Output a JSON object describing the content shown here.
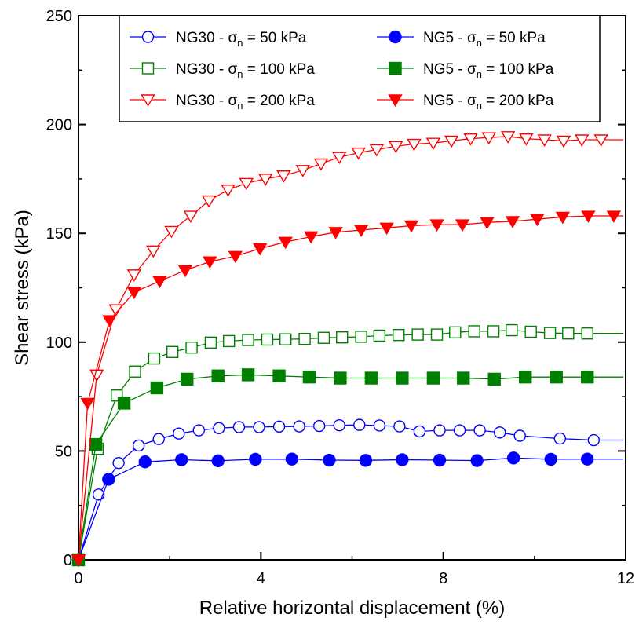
{
  "chart_data": {
    "type": "line",
    "title": "",
    "xlabel": "Relative horizontal displacement (%)",
    "ylabel": "Shear stress (kPa)",
    "xlim": [
      0,
      12
    ],
    "ylim": [
      0,
      250
    ],
    "x_ticks": [
      "0",
      "4",
      "8",
      "12"
    ],
    "y_ticks": [
      "0",
      "50",
      "100",
      "150",
      "200",
      "250"
    ],
    "grid": false,
    "legend_position": "top-center",
    "legend": {
      "left": [
        {
          "prefix": "NG30 - ",
          "sigma": "σ",
          "sub": "n",
          "suffix": " =  50 kPa"
        },
        {
          "prefix": "NG30 - ",
          "sigma": "σ",
          "sub": "n",
          "suffix": " =  100 kPa"
        },
        {
          "prefix": "NG30 - ",
          "sigma": "σ",
          "sub": "n",
          "suffix": " =  200 kPa"
        }
      ],
      "right": [
        {
          "prefix": "NG5 - ",
          "sigma": "σ",
          "sub": "n",
          "suffix": " =  50 kPa"
        },
        {
          "prefix": "NG5 - ",
          "sigma": "σ",
          "sub": "n",
          "suffix": " =  100 kPa"
        },
        {
          "prefix": "NG5 - ",
          "sigma": "σ",
          "sub": "n",
          "suffix": " =  200 kPa"
        }
      ]
    },
    "series": [
      {
        "name": "NG30 - σn = 50 kPa",
        "color": "#0000FF",
        "marker": "circle-open",
        "x": [
          0,
          0.44,
          0.88,
          1.32,
          1.76,
          2.2,
          2.64,
          3.08,
          3.52,
          3.96,
          4.4,
          4.84,
          5.28,
          5.72,
          6.16,
          6.6,
          7.04,
          7.48,
          7.92,
          8.36,
          8.8,
          9.24,
          9.68,
          10.56,
          11.3
        ],
        "y": [
          0,
          30,
          44.5,
          52.5,
          55.5,
          58,
          59.5,
          60.5,
          61,
          61,
          61.2,
          61.3,
          61.5,
          61.8,
          62,
          61.7,
          61.3,
          59,
          59.5,
          59.5,
          59.5,
          58.5,
          57,
          55.7,
          55
        ]
      },
      {
        "name": "NG5 - σn = 50 kPa",
        "color": "#0000FF",
        "marker": "circle-filled",
        "x": [
          0,
          0.66,
          1.46,
          2.26,
          3.06,
          3.88,
          4.68,
          5.5,
          6.3,
          7.1,
          7.92,
          8.74,
          9.54,
          10.36,
          11.16
        ],
        "y": [
          0,
          37,
          45,
          46,
          45.5,
          46.2,
          46.3,
          45.8,
          45.7,
          46,
          45.8,
          45.6,
          46.8,
          46.2,
          46.3
        ]
      },
      {
        "name": "NG30 - σn = 100 kPa",
        "color": "#008000",
        "marker": "square-open",
        "x": [
          0,
          0.42,
          0.84,
          1.24,
          1.66,
          2.06,
          2.48,
          2.9,
          3.3,
          3.72,
          4.14,
          4.54,
          4.96,
          5.38,
          5.78,
          6.2,
          6.6,
          7.02,
          7.44,
          7.86,
          8.26,
          8.68,
          9.1,
          9.5,
          9.92,
          10.34,
          10.74,
          11.16
        ],
        "y": [
          0,
          51,
          75.5,
          86.5,
          92.5,
          95.5,
          97.5,
          99.8,
          100.5,
          101,
          101.2,
          101.3,
          101.5,
          102,
          102.2,
          102.5,
          103,
          103.3,
          103.5,
          103.5,
          104.5,
          105,
          105,
          105.5,
          104.8,
          104.2,
          104,
          104
        ]
      },
      {
        "name": "NG5 - σn = 100 kPa",
        "color": "#008000",
        "marker": "square-filled",
        "x": [
          0,
          0.38,
          1.0,
          1.72,
          2.38,
          3.06,
          3.72,
          4.4,
          5.06,
          5.74,
          6.42,
          7.1,
          7.78,
          8.44,
          9.12,
          9.8,
          10.48,
          11.16
        ],
        "y": [
          0,
          53,
          72,
          79,
          83,
          84.5,
          85,
          84.5,
          84,
          83.5,
          83.5,
          83.5,
          83.5,
          83.5,
          83,
          84,
          84,
          84
        ]
      },
      {
        "name": "NG30 - σn = 200 kPa",
        "color": "#FF0000",
        "marker": "triangle-down-open",
        "x": [
          0,
          0.4,
          0.82,
          1.22,
          1.64,
          2.04,
          2.46,
          2.86,
          3.28,
          3.68,
          4.1,
          4.5,
          4.92,
          5.32,
          5.72,
          6.14,
          6.54,
          6.96,
          7.36,
          7.78,
          8.18,
          8.6,
          9.0,
          9.42,
          9.82,
          10.22,
          10.64,
          11.04,
          11.46
        ],
        "y": [
          0,
          85,
          115,
          131,
          142,
          151,
          158,
          165,
          170,
          173,
          175,
          176.5,
          179,
          182,
          185,
          187,
          188.5,
          190,
          191,
          191.5,
          192.5,
          193.5,
          194,
          194.5,
          193.5,
          193,
          192.5,
          193,
          193
        ]
      },
      {
        "name": "NG5 - σn = 200 kPa",
        "color": "#FF0000",
        "marker": "triangle-down-filled",
        "x": [
          0,
          0.2,
          0.68,
          1.22,
          1.78,
          2.34,
          2.88,
          3.44,
          3.98,
          4.54,
          5.1,
          5.64,
          6.2,
          6.76,
          7.3,
          7.86,
          8.42,
          8.96,
          9.52,
          10.06,
          10.62,
          11.18,
          11.74
        ],
        "y": [
          0,
          72,
          110,
          123,
          128,
          133,
          137,
          139.5,
          143,
          146,
          148.5,
          150.5,
          151.5,
          152.5,
          153.5,
          154,
          154,
          155,
          155.5,
          156.5,
          157.5,
          158,
          158
        ]
      }
    ]
  }
}
